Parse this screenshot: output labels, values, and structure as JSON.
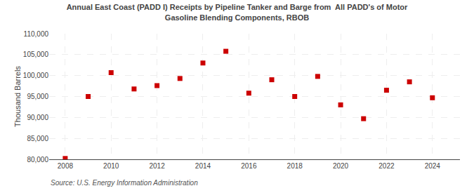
{
  "chart_data": {
    "type": "scatter",
    "title": "Annual East Coast (PADD I) Receipts by Pipeline Tanker and Barge from  All PADD's of Motor\nGasoline Blending Components, RBOB",
    "ylabel": "Thousand Barrels",
    "annotations": [
      "Source: U.S. Energy Information Administration"
    ],
    "x": [
      2008,
      2009,
      2010,
      2011,
      2012,
      2013,
      2014,
      2015,
      2016,
      2017,
      2018,
      2019,
      2020,
      2021,
      2022,
      2023,
      2024
    ],
    "values": [
      80200,
      95000,
      100700,
      96800,
      97600,
      99300,
      103000,
      105800,
      95800,
      99000,
      95000,
      99800,
      93000,
      89700,
      96500,
      98500,
      94700
    ],
    "color": "#cc0000",
    "marker": "square",
    "xlim": [
      2007.3,
      2025.2
    ],
    "xticks": [
      2008,
      2010,
      2012,
      2014,
      2016,
      2018,
      2020,
      2022,
      2024
    ],
    "ylim": [
      80000,
      110000
    ],
    "yticks": [
      {
        "value": 80000,
        "label": "80,000"
      },
      {
        "value": 85000,
        "label": "85,000"
      },
      {
        "value": 90000,
        "label": "90,000"
      },
      {
        "value": 95000,
        "label": "95,000"
      },
      {
        "value": 100000,
        "label": "100,000"
      },
      {
        "value": 105000,
        "label": "105,000"
      },
      {
        "value": 110000,
        "label": "110,000"
      }
    ],
    "grid": true
  }
}
